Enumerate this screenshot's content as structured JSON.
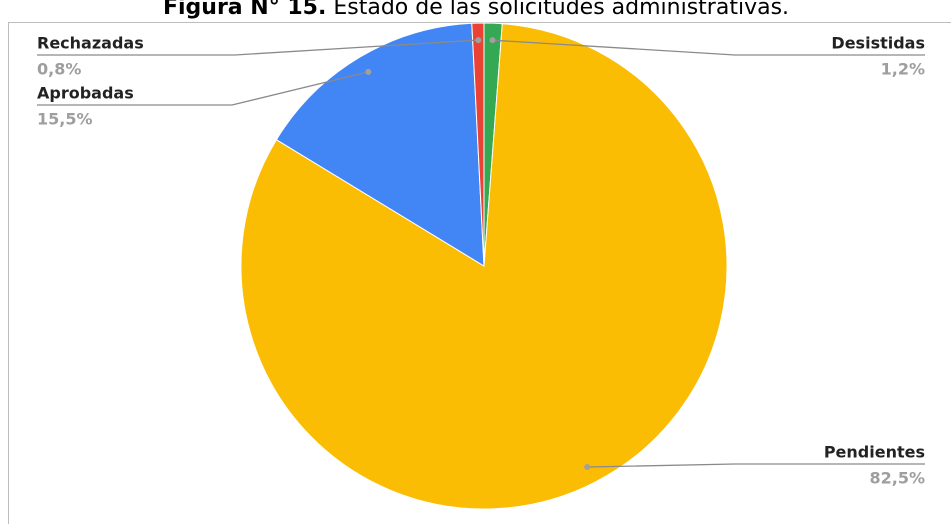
{
  "chart_data": {
    "type": "pie",
    "title_label": "Figura N° 15.",
    "title": "Estado de las solicitudes administrativas.",
    "categories": [
      "Desistidas",
      "Pendientes",
      "Aprobadas",
      "Rechazadas"
    ],
    "values": [
      1.2,
      82.5,
      15.5,
      0.8
    ],
    "value_labels": [
      "1,2%",
      "82,5%",
      "15,5%",
      "0,8%"
    ],
    "colors": [
      "#34a853",
      "#fbbc04",
      "#4285f4",
      "#ea4335"
    ]
  }
}
